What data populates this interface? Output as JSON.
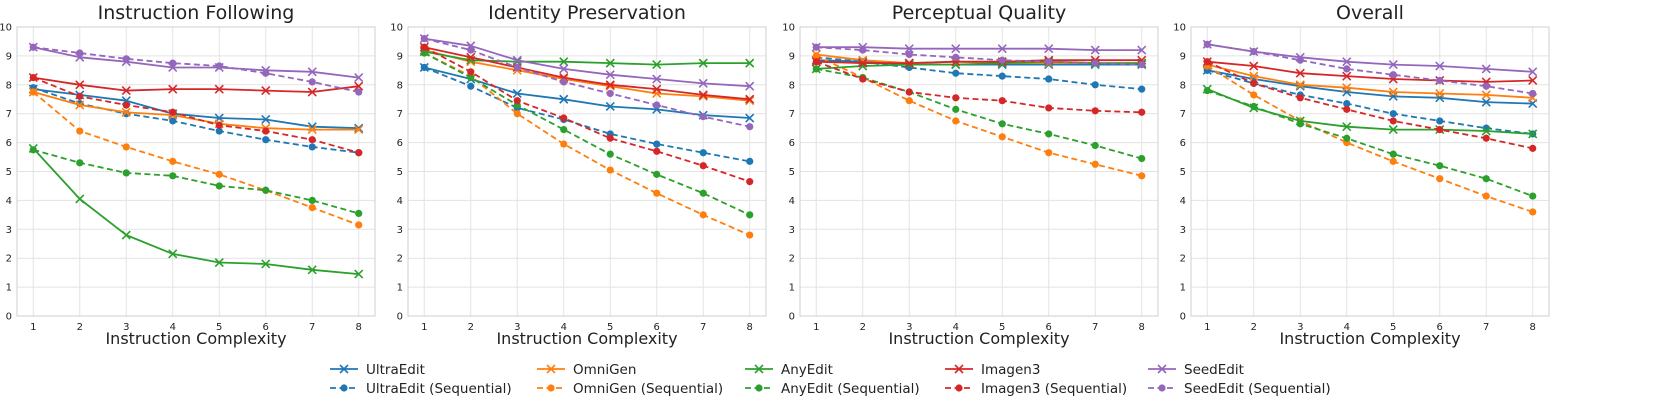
{
  "chart_data": {
    "type": "line",
    "x": [
      1,
      2,
      3,
      4,
      5,
      6,
      7,
      8
    ],
    "xlabel": "Instruction Complexity",
    "ylim": [
      0,
      10
    ],
    "yticks": [
      0,
      1,
      2,
      3,
      4,
      5,
      6,
      7,
      8,
      9,
      10
    ],
    "grid": true,
    "legend_position": "bottom",
    "colors": {
      "UltraEdit": "#1f77b4",
      "OmniGen": "#ff7f0e",
      "AnyEdit": "#2ca02c",
      "Imagen3": "#d62728",
      "SeedEdit": "#9467bd"
    },
    "legend": [
      "UltraEdit",
      "UltraEdit (Sequential)",
      "OmniGen",
      "OmniGen (Sequential)",
      "AnyEdit",
      "AnyEdit (Sequential)",
      "Imagen3",
      "Imagen3 (Sequential)",
      "SeedEdit",
      "SeedEdit (Sequential)"
    ],
    "panels": [
      {
        "title": "Instruction Following",
        "series": [
          {
            "name": "UltraEdit",
            "model": "UltraEdit",
            "style": "solid",
            "values": [
              7.85,
              7.65,
              7.45,
              7.0,
              6.85,
              6.8,
              6.55,
              6.5
            ]
          },
          {
            "name": "UltraEdit (Sequential)",
            "model": "UltraEdit",
            "style": "dashed",
            "values": [
              7.9,
              7.35,
              7.0,
              6.75,
              6.4,
              6.1,
              5.85,
              5.65
            ]
          },
          {
            "name": "OmniGen",
            "model": "OmniGen",
            "style": "solid",
            "values": [
              7.75,
              7.3,
              7.05,
              6.95,
              6.65,
              6.5,
              6.45,
              6.45
            ]
          },
          {
            "name": "OmniGen (Sequential)",
            "model": "OmniGen",
            "style": "dashed",
            "values": [
              7.75,
              6.4,
              5.85,
              5.35,
              4.9,
              4.35,
              3.75,
              3.15
            ]
          },
          {
            "name": "AnyEdit",
            "model": "AnyEdit",
            "style": "solid",
            "values": [
              5.8,
              4.05,
              2.8,
              2.15,
              1.85,
              1.8,
              1.6,
              1.45
            ]
          },
          {
            "name": "AnyEdit (Sequential)",
            "model": "AnyEdit",
            "style": "dashed",
            "values": [
              5.75,
              5.3,
              4.95,
              4.85,
              4.5,
              4.35,
              4.0,
              3.55
            ]
          },
          {
            "name": "Imagen3",
            "model": "Imagen3",
            "style": "solid",
            "values": [
              8.25,
              8.0,
              7.8,
              7.85,
              7.85,
              7.8,
              7.75,
              7.95
            ]
          },
          {
            "name": "Imagen3 (Sequential)",
            "model": "Imagen3",
            "style": "dashed",
            "values": [
              8.25,
              7.6,
              7.3,
              7.05,
              6.6,
              6.4,
              6.1,
              5.65
            ]
          },
          {
            "name": "SeedEdit",
            "model": "SeedEdit",
            "style": "solid",
            "values": [
              9.3,
              8.95,
              8.8,
              8.6,
              8.6,
              8.5,
              8.45,
              8.25
            ]
          },
          {
            "name": "SeedEdit (Sequential)",
            "model": "SeedEdit",
            "style": "dashed",
            "values": [
              9.3,
              9.1,
              8.9,
              8.75,
              8.65,
              8.4,
              8.1,
              7.75
            ]
          }
        ]
      },
      {
        "title": "Identity Preservation",
        "series": [
          {
            "name": "UltraEdit",
            "model": "UltraEdit",
            "style": "solid",
            "values": [
              8.6,
              8.2,
              7.7,
              7.5,
              7.25,
              7.15,
              6.95,
              6.85
            ]
          },
          {
            "name": "UltraEdit (Sequential)",
            "model": "UltraEdit",
            "style": "dashed",
            "values": [
              8.6,
              7.95,
              7.2,
              6.8,
              6.3,
              5.95,
              5.65,
              5.35
            ]
          },
          {
            "name": "OmniGen",
            "model": "OmniGen",
            "style": "solid",
            "values": [
              9.2,
              8.8,
              8.5,
              8.2,
              7.95,
              7.7,
              7.6,
              7.45
            ]
          },
          {
            "name": "OmniGen (Sequential)",
            "model": "OmniGen",
            "style": "dashed",
            "values": [
              9.1,
              8.3,
              7.0,
              5.95,
              5.05,
              4.25,
              3.5,
              2.8
            ]
          },
          {
            "name": "AnyEdit",
            "model": "AnyEdit",
            "style": "solid",
            "values": [
              9.15,
              8.85,
              8.8,
              8.8,
              8.75,
              8.7,
              8.75,
              8.75
            ]
          },
          {
            "name": "AnyEdit (Sequential)",
            "model": "AnyEdit",
            "style": "dashed",
            "values": [
              9.1,
              8.25,
              7.3,
              6.45,
              5.6,
              4.9,
              4.25,
              3.5
            ]
          },
          {
            "name": "Imagen3",
            "model": "Imagen3",
            "style": "solid",
            "values": [
              9.3,
              8.95,
              8.6,
              8.25,
              8.0,
              7.85,
              7.65,
              7.5
            ]
          },
          {
            "name": "Imagen3 (Sequential)",
            "model": "Imagen3",
            "style": "dashed",
            "values": [
              9.3,
              8.45,
              7.45,
              6.85,
              6.15,
              5.7,
              5.2,
              4.65
            ]
          },
          {
            "name": "SeedEdit",
            "model": "SeedEdit",
            "style": "solid",
            "values": [
              9.6,
              9.35,
              8.85,
              8.55,
              8.35,
              8.2,
              8.05,
              7.95
            ]
          },
          {
            "name": "SeedEdit (Sequential)",
            "model": "SeedEdit",
            "style": "dashed",
            "values": [
              9.6,
              9.2,
              8.6,
              8.1,
              7.7,
              7.3,
              6.9,
              6.55
            ]
          }
        ]
      },
      {
        "title": "Perceptual Quality",
        "series": [
          {
            "name": "UltraEdit",
            "model": "UltraEdit",
            "style": "solid",
            "values": [
              8.85,
              8.8,
              8.7,
              8.7,
              8.7,
              8.7,
              8.7,
              8.7
            ]
          },
          {
            "name": "UltraEdit (Sequential)",
            "model": "UltraEdit",
            "style": "dashed",
            "values": [
              8.95,
              8.8,
              8.6,
              8.4,
              8.3,
              8.2,
              8.0,
              7.85
            ]
          },
          {
            "name": "OmniGen",
            "model": "OmniGen",
            "style": "solid",
            "values": [
              9.05,
              8.85,
              8.75,
              8.8,
              8.75,
              8.75,
              8.75,
              8.75
            ]
          },
          {
            "name": "OmniGen (Sequential)",
            "model": "OmniGen",
            "style": "dashed",
            "values": [
              9.0,
              8.25,
              7.45,
              6.75,
              6.2,
              5.65,
              5.25,
              4.85
            ]
          },
          {
            "name": "AnyEdit",
            "model": "AnyEdit",
            "style": "solid",
            "values": [
              8.55,
              8.65,
              8.7,
              8.7,
              8.75,
              8.8,
              8.75,
              8.75
            ]
          },
          {
            "name": "AnyEdit (Sequential)",
            "model": "AnyEdit",
            "style": "dashed",
            "values": [
              8.55,
              8.25,
              7.75,
              7.15,
              6.65,
              6.3,
              5.9,
              5.45
            ]
          },
          {
            "name": "Imagen3",
            "model": "Imagen3",
            "style": "solid",
            "values": [
              8.8,
              8.75,
              8.75,
              8.8,
              8.8,
              8.85,
              8.85,
              8.85
            ]
          },
          {
            "name": "Imagen3 (Sequential)",
            "model": "Imagen3",
            "style": "dashed",
            "values": [
              8.8,
              8.2,
              7.75,
              7.55,
              7.45,
              7.2,
              7.1,
              7.05
            ]
          },
          {
            "name": "SeedEdit",
            "model": "SeedEdit",
            "style": "solid",
            "values": [
              9.3,
              9.3,
              9.25,
              9.25,
              9.25,
              9.25,
              9.2,
              9.2
            ]
          },
          {
            "name": "SeedEdit (Sequential)",
            "model": "SeedEdit",
            "style": "dashed",
            "values": [
              9.3,
              9.2,
              9.05,
              8.95,
              8.85,
              8.8,
              8.75,
              8.7
            ]
          }
        ]
      },
      {
        "title": "Overall",
        "series": [
          {
            "name": "UltraEdit",
            "model": "UltraEdit",
            "style": "solid",
            "values": [
              8.5,
              8.2,
              7.95,
              7.75,
              7.6,
              7.55,
              7.4,
              7.35
            ]
          },
          {
            "name": "UltraEdit (Sequential)",
            "model": "UltraEdit",
            "style": "dashed",
            "values": [
              8.5,
              8.05,
              7.65,
              7.35,
              7.0,
              6.75,
              6.5,
              6.3
            ]
          },
          {
            "name": "OmniGen",
            "model": "OmniGen",
            "style": "solid",
            "values": [
              8.7,
              8.3,
              8.0,
              7.9,
              7.75,
              7.7,
              7.65,
              7.55
            ]
          },
          {
            "name": "OmniGen (Sequential)",
            "model": "OmniGen",
            "style": "dashed",
            "values": [
              8.65,
              7.65,
              6.75,
              6.0,
              5.35,
              4.75,
              4.15,
              3.6
            ]
          },
          {
            "name": "AnyEdit",
            "model": "AnyEdit",
            "style": "solid",
            "values": [
              7.85,
              7.2,
              6.75,
              6.55,
              6.45,
              6.45,
              6.4,
              6.3
            ]
          },
          {
            "name": "AnyEdit (Sequential)",
            "model": "AnyEdit",
            "style": "dashed",
            "values": [
              7.8,
              7.25,
              6.65,
              6.15,
              5.6,
              5.2,
              4.75,
              4.15
            ]
          },
          {
            "name": "Imagen3",
            "model": "Imagen3",
            "style": "solid",
            "values": [
              8.8,
              8.65,
              8.4,
              8.3,
              8.2,
              8.15,
              8.1,
              8.15
            ]
          },
          {
            "name": "Imagen3 (Sequential)",
            "model": "Imagen3",
            "style": "dashed",
            "values": [
              8.8,
              8.05,
              7.55,
              7.15,
              6.75,
              6.45,
              6.15,
              5.8
            ]
          },
          {
            "name": "SeedEdit",
            "model": "SeedEdit",
            "style": "solid",
            "values": [
              9.4,
              9.15,
              8.95,
              8.8,
              8.7,
              8.65,
              8.55,
              8.45
            ]
          },
          {
            "name": "SeedEdit (Sequential)",
            "model": "SeedEdit",
            "style": "dashed",
            "values": [
              9.4,
              9.15,
              8.85,
              8.55,
              8.35,
              8.15,
              7.95,
              7.7
            ]
          }
        ]
      }
    ]
  }
}
